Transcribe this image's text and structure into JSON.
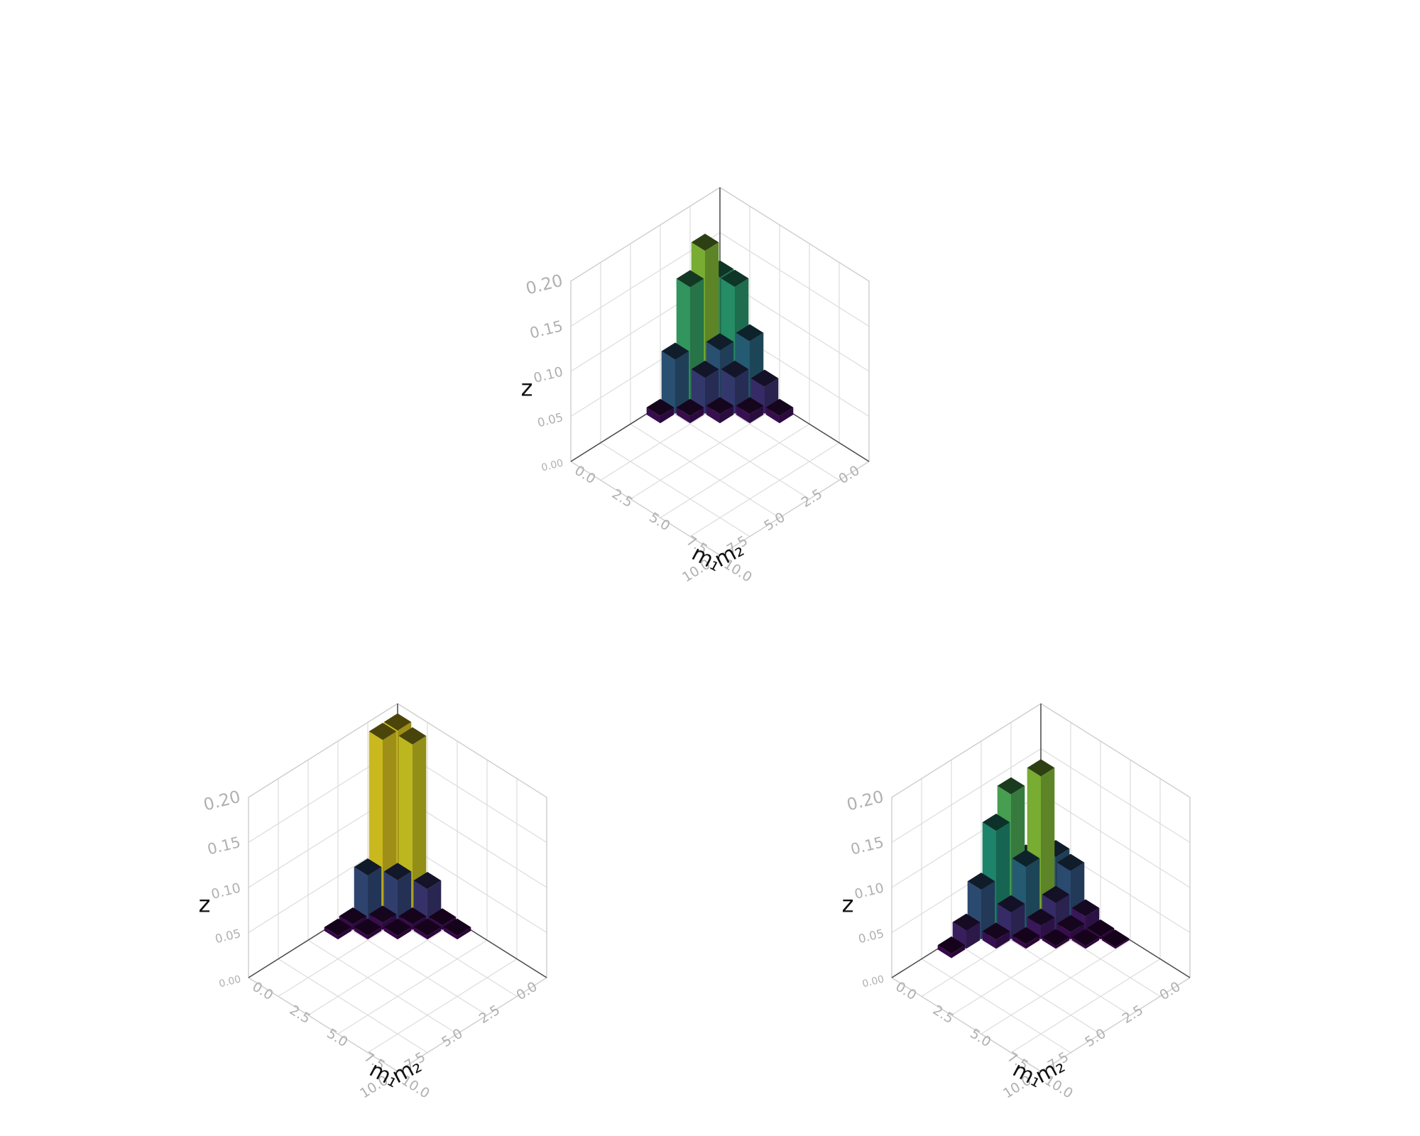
{
  "chart_data": [
    {
      "type": "bar3d",
      "xlabel": "m₁",
      "ylabel": "m₂",
      "zlabel": "z",
      "xlim": [
        0,
        10
      ],
      "ylim": [
        0,
        10
      ],
      "zlim": [
        0,
        0.2
      ],
      "grid": true,
      "x_ticks": [
        "0.0",
        "2.5",
        "5.0",
        "7.5",
        "10.0"
      ],
      "y_ticks": [
        "0.0",
        "2.5",
        "5.0",
        "7.5",
        "10.0"
      ],
      "z_ticks": [
        "0.00",
        "0.05",
        "0.10",
        "0.15",
        "0.20"
      ],
      "bars": [
        {
          "m1": 0,
          "m2": 0,
          "z": 0.12
        },
        {
          "m1": 0,
          "m2": 1,
          "z": 0.16
        },
        {
          "m1": 0,
          "m2": 2,
          "z": 0.13
        },
        {
          "m1": 0,
          "m2": 3,
          "z": 0.06
        },
        {
          "m1": 0,
          "m2": 4,
          "z": 0.008
        },
        {
          "m1": 1,
          "m2": 0,
          "z": 0.12
        },
        {
          "m1": 1,
          "m2": 1,
          "z": 0.06
        },
        {
          "m1": 1,
          "m2": 2,
          "z": 0.04
        },
        {
          "m1": 1,
          "m2": 3,
          "z": 0.008
        },
        {
          "m1": 2,
          "m2": 0,
          "z": 0.07
        },
        {
          "m1": 2,
          "m2": 1,
          "z": 0.04
        },
        {
          "m1": 2,
          "m2": 2,
          "z": 0.01
        },
        {
          "m1": 3,
          "m2": 0,
          "z": 0.03
        },
        {
          "m1": 3,
          "m2": 1,
          "z": 0.01
        },
        {
          "m1": 4,
          "m2": 0,
          "z": 0.008
        }
      ]
    },
    {
      "type": "bar3d",
      "xlabel": "m₁",
      "ylabel": "m₂",
      "zlabel": "z",
      "xlim": [
        0,
        10
      ],
      "ylim": [
        0,
        10
      ],
      "zlim": [
        0,
        0.2
      ],
      "grid": true,
      "x_ticks": [
        "0.0",
        "2.5",
        "5.0",
        "7.5",
        "10.0"
      ],
      "y_ticks": [
        "0.0",
        "2.5",
        "5.0",
        "7.5",
        "10.0"
      ],
      "z_ticks": [
        "0.00",
        "0.05",
        "0.10",
        "0.15",
        "0.20"
      ],
      "bars": [
        {
          "m1": 0,
          "m2": 0,
          "z": 0.19
        },
        {
          "m1": 0,
          "m2": 1,
          "z": 0.19
        },
        {
          "m1": 0,
          "m2": 2,
          "z": 0.05
        },
        {
          "m1": 0,
          "m2": 3,
          "z": 0.006
        },
        {
          "m1": 0,
          "m2": 4,
          "z": 0.004
        },
        {
          "m1": 1,
          "m2": 0,
          "z": 0.185
        },
        {
          "m1": 1,
          "m2": 1,
          "z": 0.045
        },
        {
          "m1": 1,
          "m2": 2,
          "z": 0.008
        },
        {
          "m1": 1,
          "m2": 3,
          "z": 0.004
        },
        {
          "m1": 2,
          "m2": 0,
          "z": 0.035
        },
        {
          "m1": 2,
          "m2": 1,
          "z": 0.006
        },
        {
          "m1": 2,
          "m2": 2,
          "z": 0.004
        },
        {
          "m1": 3,
          "m2": 0,
          "z": 0.005
        },
        {
          "m1": 3,
          "m2": 1,
          "z": 0.004
        },
        {
          "m1": 4,
          "m2": 0,
          "z": 0.004
        }
      ]
    },
    {
      "type": "bar3d",
      "xlabel": "m₁",
      "ylabel": "m₂",
      "zlabel": "z",
      "xlim": [
        0,
        10
      ],
      "ylim": [
        0,
        10
      ],
      "zlim": [
        0,
        0.2
      ],
      "grid": true,
      "x_ticks": [
        "0.0",
        "2.5",
        "5.0",
        "7.5",
        "10.0"
      ],
      "y_ticks": [
        "0.0",
        "2.5",
        "5.0",
        "7.5",
        "10.0"
      ],
      "z_ticks": [
        "0.00",
        "0.05",
        "0.10",
        "0.15",
        "0.20"
      ],
      "bars": [
        {
          "m1": 0,
          "m2": 0,
          "z": 0.02
        },
        {
          "m1": 0,
          "m2": 1,
          "z": 0.055
        },
        {
          "m1": 0,
          "m2": 2,
          "z": 0.14
        },
        {
          "m1": 0,
          "m2": 3,
          "z": 0.11
        },
        {
          "m1": 0,
          "m2": 4,
          "z": 0.055
        },
        {
          "m1": 0,
          "m2": 5,
          "z": 0.02
        },
        {
          "m1": 0,
          "m2": 6,
          "z": 0.005
        },
        {
          "m1": 1,
          "m2": 0,
          "z": 0.06
        },
        {
          "m1": 1,
          "m2": 1,
          "z": 0.16
        },
        {
          "m1": 1,
          "m2": 2,
          "z": 0.07
        },
        {
          "m1": 1,
          "m2": 3,
          "z": 0.03
        },
        {
          "m1": 1,
          "m2": 4,
          "z": 0.01
        },
        {
          "m1": 2,
          "m2": 0,
          "z": 0.055
        },
        {
          "m1": 2,
          "m2": 1,
          "z": 0.03
        },
        {
          "m1": 2,
          "m2": 2,
          "z": 0.015
        },
        {
          "m1": 2,
          "m2": 3,
          "z": 0.005
        },
        {
          "m1": 3,
          "m2": 0,
          "z": 0.015
        },
        {
          "m1": 3,
          "m2": 1,
          "z": 0.008
        },
        {
          "m1": 3,
          "m2": 2,
          "z": 0.003
        },
        {
          "m1": 4,
          "m2": 0,
          "z": 0.003
        },
        {
          "m1": 4,
          "m2": 1,
          "z": 0.003
        },
        {
          "m1": 5,
          "m2": 0,
          "z": 0.002
        }
      ]
    }
  ]
}
